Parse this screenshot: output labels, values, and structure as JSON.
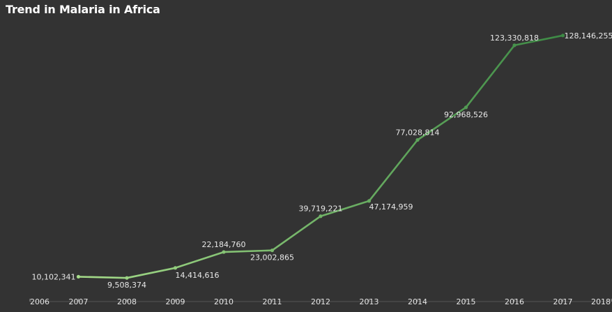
{
  "chart_data": {
    "type": "line",
    "title": "Trend in Malaria in Africa",
    "xlabel": "",
    "ylabel": "",
    "x_ticks": [
      "2006",
      "2007",
      "2008",
      "2009",
      "2010",
      "2011",
      "2012",
      "2013",
      "2014",
      "2015",
      "2016",
      "2017",
      "2018"
    ],
    "xlim": [
      2006,
      2018
    ],
    "ylim": [
      0,
      135000000
    ],
    "grid": false,
    "series": [
      {
        "x": [
          2007,
          2008,
          2009,
          2010,
          2011,
          2012,
          2013,
          2014,
          2015,
          2016,
          2017
        ],
        "values": [
          10102341,
          9508374,
          14414616,
          22184760,
          23002865,
          39719221,
          47174959,
          77028814,
          92968526,
          123330818,
          128146255
        ],
        "labels": [
          "10,102,341",
          "9,508,374",
          "14,414,616",
          "22,184,760",
          "23,002,865",
          "39,719,221",
          "47,174,959",
          "77,028,814",
          "92,968,526",
          "123,330,818",
          "128,146,255"
        ],
        "color_gradient": [
          "#a6dc8a",
          "#3d8a45"
        ]
      }
    ]
  }
}
